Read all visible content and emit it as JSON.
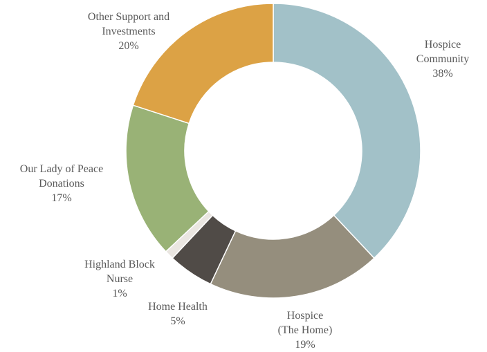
{
  "chart_data": {
    "type": "pie",
    "variant": "donut",
    "title": "",
    "slices": [
      {
        "lines": [
          "Hospice",
          "Community"
        ],
        "value": 38,
        "value_label": "38%",
        "color": "#A2C1C8"
      },
      {
        "lines": [
          "Hospice",
          "(The Home)"
        ],
        "value": 19,
        "value_label": "19%",
        "color": "#958E7D"
      },
      {
        "lines": [
          "Home Health"
        ],
        "value": 5,
        "value_label": "5%",
        "color": "#504B47"
      },
      {
        "lines": [
          "Highland Block",
          "Nurse"
        ],
        "value": 1,
        "value_label": "1%",
        "color": "#EAE6E1"
      },
      {
        "lines": [
          "Our Lady of Peace",
          "Donations"
        ],
        "value": 17,
        "value_label": "17%",
        "color": "#99B276"
      },
      {
        "lines": [
          "Other Support and",
          "Investments"
        ],
        "value": 20,
        "value_label": "20%",
        "color": "#DCA245"
      }
    ],
    "legend": "none",
    "label_color": "#595959",
    "background": "#FFFFFF"
  }
}
